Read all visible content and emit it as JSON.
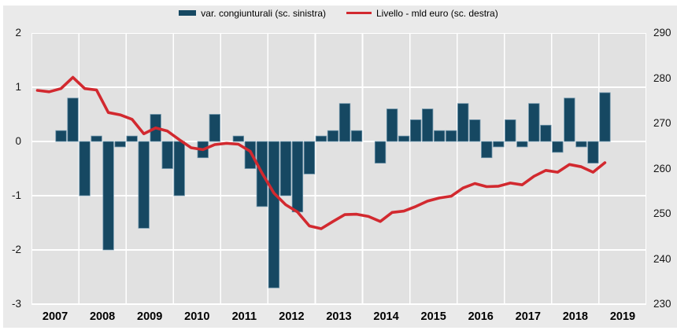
{
  "legend": {
    "bars_label": "var. congiunturali (sc. sinistra)",
    "line_label": "Livello - mld euro (sc. destra)"
  },
  "colors": {
    "bar_fill": "#164862",
    "bar_border": "#6e94aa",
    "line": "#d2292f",
    "plot_bg": "#e1e1e1",
    "panel_bg": "#eaeaea",
    "grid": "#ffffff",
    "tick_text": "#161616"
  },
  "chart_data": {
    "type": "bar+line combo, quarterly 2007Q1-2019Q1",
    "x_tick_labels": [
      "2007",
      "2008",
      "2009",
      "2010",
      "2011",
      "2012",
      "2013",
      "2014",
      "2015",
      "2016",
      "2017",
      "2018",
      "2019"
    ],
    "left_axis": {
      "label_side": "left",
      "ticks": [
        2,
        1,
        0,
        -1,
        -2,
        -3
      ],
      "range": [
        -3,
        2
      ]
    },
    "right_axis": {
      "label_side": "right",
      "ticks": [
        290,
        280,
        270,
        260,
        250,
        240,
        230
      ],
      "range": [
        230,
        290
      ]
    },
    "grid": "white gridlines on gray plot background",
    "legend_position": "top-center",
    "series": [
      {
        "name": "var. congiunturali (sc. sinistra)",
        "type": "bar",
        "axis": "left",
        "values": [
          0.0,
          0.0,
          0.2,
          0.8,
          -1.0,
          0.1,
          -2.0,
          -0.1,
          0.1,
          -1.6,
          0.5,
          -0.5,
          -1.0,
          0.0,
          -0.3,
          0.5,
          0.0,
          0.1,
          -0.5,
          -1.2,
          -2.7,
          -1.0,
          -1.3,
          -0.6,
          0.1,
          0.2,
          0.7,
          0.2,
          0.0,
          -0.4,
          0.6,
          0.1,
          0.4,
          0.6,
          0.2,
          0.2,
          0.7,
          0.4,
          -0.3,
          -0.1,
          0.4,
          -0.1,
          0.7,
          0.3,
          -0.2,
          0.8,
          -0.1,
          -0.4,
          0.9
        ]
      },
      {
        "name": "Livello - mld euro (sc. destra)",
        "type": "line",
        "axis": "right",
        "values": [
          277.3,
          277.0,
          277.7,
          280.2,
          277.7,
          277.4,
          272.4,
          271.9,
          270.9,
          267.7,
          269.0,
          268.3,
          266.4,
          264.6,
          264.2,
          265.3,
          265.6,
          265.4,
          263.8,
          259.0,
          254.6,
          252.0,
          250.4,
          247.3,
          246.7,
          248.3,
          249.8,
          249.9,
          249.4,
          248.3,
          250.3,
          250.6,
          251.6,
          252.8,
          253.5,
          253.9,
          255.7,
          256.7,
          256.0,
          256.1,
          256.8,
          256.4,
          258.3,
          259.6,
          259.2,
          260.9,
          260.4,
          259.2,
          261.3
        ]
      }
    ]
  }
}
